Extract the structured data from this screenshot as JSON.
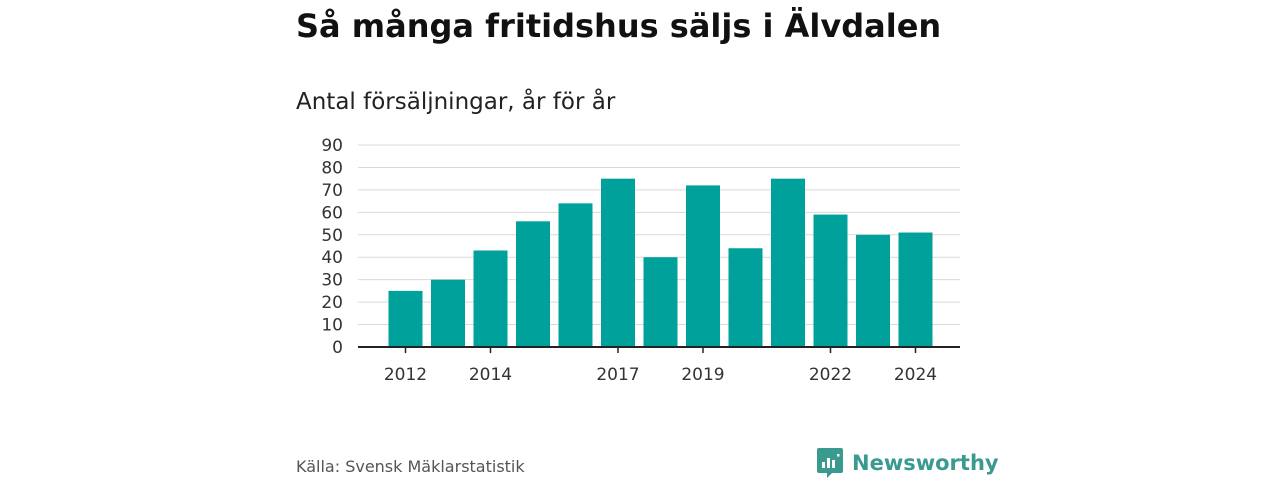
{
  "title": "Så många fritidshus säljs i Älvdalen",
  "subtitle": "Antal försäljningar, år för år",
  "source": "Källa: Svensk Mäklarstatistik",
  "brand": {
    "name": "Newsworthy",
    "logo_icon": "newsworthy-chart-icon",
    "color": "#3a9a8f"
  },
  "colors": {
    "bar": "#00a19a",
    "grid": "#d9d9d9",
    "axis": "#222222"
  },
  "chart_data": {
    "type": "bar",
    "categories": [
      "2012",
      "2013",
      "2014",
      "2015",
      "2016",
      "2017",
      "2018",
      "2019",
      "2020",
      "2021",
      "2022",
      "2023",
      "2024"
    ],
    "values": [
      25,
      30,
      43,
      56,
      64,
      75,
      40,
      72,
      44,
      75,
      59,
      50,
      51
    ],
    "x_tick_labels": [
      "2012",
      "2014",
      "2017",
      "2019",
      "2022",
      "2024"
    ],
    "y_ticks": [
      0,
      10,
      20,
      30,
      40,
      50,
      60,
      70,
      80,
      90
    ],
    "ylim": [
      0,
      90
    ],
    "grid": true,
    "title": "Så många fritidshus säljs i Älvdalen",
    "xlabel": "",
    "ylabel": ""
  }
}
